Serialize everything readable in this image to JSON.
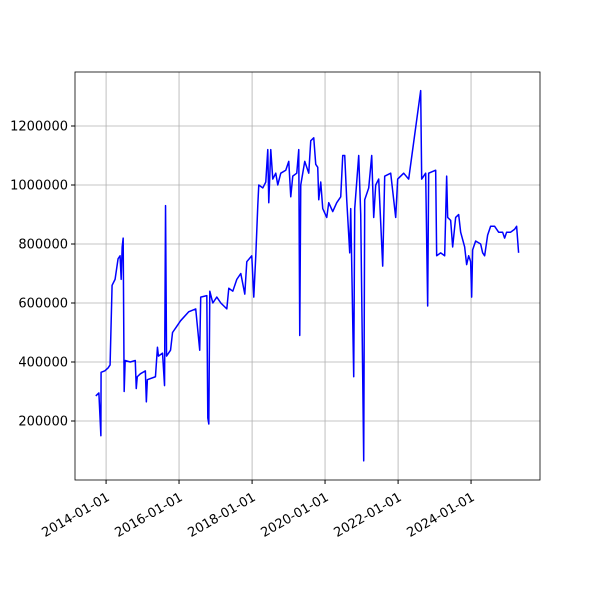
{
  "chart_data": {
    "type": "line",
    "color": "#0000ff",
    "grid": true,
    "x": [
      "2013-09-20",
      "2013-10-21",
      "2013-11-10",
      "2013-11-12",
      "2013-12-20",
      "2014-01-21",
      "2014-02-10",
      "2014-03-02",
      "2014-04-01",
      "2014-05-01",
      "2014-05-21",
      "2014-06-01",
      "2014-06-11",
      "2014-06-21",
      "2014-07-01",
      "2014-07-11",
      "2014-08-31",
      "2014-10-20",
      "2014-10-30",
      "2014-11-09",
      "2014-12-10",
      "2015-01-29",
      "2015-02-08",
      "2015-02-18",
      "2015-05-10",
      "2015-05-30",
      "2015-06-09",
      "2015-07-20",
      "2015-08-09",
      "2015-08-19",
      "2015-08-29",
      "2015-10-08",
      "2015-10-28",
      "2015-12-08",
      "2016-01-17",
      "2016-04-06",
      "2016-06-16",
      "2016-07-26",
      "2016-08-05",
      "2016-10-05",
      "2016-10-15",
      "2016-10-25",
      "2016-11-04",
      "2016-12-04",
      "2017-01-13",
      "2017-02-22",
      "2017-04-23",
      "2017-05-13",
      "2017-06-22",
      "2017-08-01",
      "2017-09-10",
      "2017-10-20",
      "2017-11-09",
      "2017-12-29",
      "2018-01-18",
      "2018-02-07",
      "2018-02-27",
      "2018-03-09",
      "2018-04-18",
      "2018-05-18",
      "2018-06-07",
      "2018-06-17",
      "2018-07-07",
      "2018-07-27",
      "2018-08-26",
      "2018-09-15",
      "2018-10-15",
      "2018-12-04",
      "2019-01-03",
      "2019-01-23",
      "2019-02-12",
      "2019-03-24",
      "2019-04-13",
      "2019-04-23",
      "2019-05-03",
      "2019-06-12",
      "2019-07-22",
      "2019-08-11",
      "2019-09-10",
      "2019-09-30",
      "2019-10-20",
      "2019-10-30",
      "2019-11-19",
      "2019-12-09",
      "2020-01-18",
      "2020-02-07",
      "2020-03-18",
      "2020-04-27",
      "2020-06-06",
      "2020-06-26",
      "2020-07-16",
      "2020-08-05",
      "2020-09-04",
      "2020-09-14",
      "2020-10-14",
      "2020-10-24",
      "2020-12-03",
      "2020-12-23",
      "2021-01-12",
      "2021-01-22",
      "2021-02-01",
      "2021-03-13",
      "2021-04-12",
      "2021-05-02",
      "2021-05-22",
      "2021-06-21",
      "2021-07-31",
      "2021-08-20",
      "2021-10-19",
      "2021-12-08",
      "2021-12-28",
      "2022-02-26",
      "2022-04-17",
      "2022-08-15",
      "2022-08-25",
      "2022-10-04",
      "2022-10-24",
      "2022-11-03",
      "2023-01-12",
      "2023-01-22",
      "2023-03-03",
      "2023-04-12",
      "2023-05-02",
      "2023-05-12",
      "2023-06-11",
      "2023-07-01",
      "2023-07-31",
      "2023-08-30",
      "2023-09-19",
      "2023-10-29",
      "2023-11-18",
      "2023-12-08",
      "2023-12-28",
      "2024-01-07",
      "2024-01-17",
      "2024-02-16",
      "2024-04-06",
      "2024-04-26",
      "2024-05-16",
      "2024-06-15",
      "2024-07-15",
      "2024-08-24",
      "2024-10-03",
      "2024-11-12",
      "2024-12-02",
      "2024-12-22",
      "2025-01-31",
      "2025-03-12",
      "2025-04-01",
      "2025-04-21"
    ],
    "values": [
      285000,
      295000,
      150000,
      365000,
      370000,
      380000,
      390000,
      660000,
      680000,
      750000,
      760000,
      680000,
      790000,
      820000,
      300000,
      405000,
      400000,
      405000,
      310000,
      350000,
      360000,
      370000,
      265000,
      340000,
      350000,
      450000,
      420000,
      430000,
      320000,
      930000,
      420000,
      440000,
      500000,
      520000,
      540000,
      570000,
      580000,
      440000,
      620000,
      625000,
      210000,
      190000,
      640000,
      600000,
      620000,
      600000,
      580000,
      650000,
      640000,
      680000,
      700000,
      630000,
      740000,
      760000,
      620000,
      760000,
      930000,
      1000000,
      990000,
      1010000,
      1120000,
      940000,
      1120000,
      1020000,
      1040000,
      1000000,
      1040000,
      1050000,
      1080000,
      960000,
      1030000,
      1040000,
      1120000,
      490000,
      1000000,
      1080000,
      1040000,
      1150000,
      1160000,
      1070000,
      1060000,
      950000,
      1010000,
      920000,
      890000,
      940000,
      910000,
      940000,
      960000,
      1100000,
      1100000,
      950000,
      770000,
      920000,
      350000,
      920000,
      1100000,
      900000,
      350000,
      65000,
      950000,
      990000,
      1100000,
      890000,
      1000000,
      1020000,
      725000,
      1030000,
      1040000,
      890000,
      1020000,
      1040000,
      1020000,
      1320000,
      1020000,
      1040000,
      590000,
      1040000,
      1050000,
      760000,
      770000,
      760000,
      1030000,
      890000,
      880000,
      790000,
      890000,
      900000,
      840000,
      790000,
      730000,
      760000,
      740000,
      620000,
      780000,
      810000,
      800000,
      770000,
      760000,
      830000,
      860000,
      860000,
      840000,
      840000,
      820000,
      840000,
      840000,
      850000,
      860000,
      770000
    ],
    "xlim": [
      "2013-02-24",
      "2025-11-21"
    ],
    "xticks": [
      "2014-01-01",
      "2016-01-01",
      "2018-01-01",
      "2020-01-01",
      "2022-01-01",
      "2024-01-01"
    ],
    "ylim": [
      0,
      1383000
    ],
    "yticks": [
      200000,
      400000,
      600000,
      800000,
      1000000,
      1200000
    ]
  }
}
